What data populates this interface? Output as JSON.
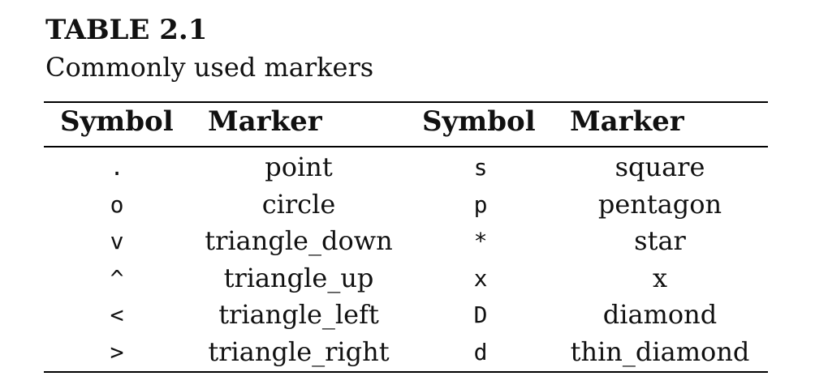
{
  "table": {
    "label": "TABLE 2.1",
    "caption": "Commonly used markers",
    "headers": [
      "Symbol",
      "Marker",
      "Symbol",
      "Marker"
    ],
    "rows": [
      [
        ".",
        "point",
        "s",
        "square"
      ],
      [
        "o",
        "circle",
        "p",
        "pentagon"
      ],
      [
        "v",
        "triangle_down",
        "*",
        "star"
      ],
      [
        "^",
        "triangle_up",
        "x",
        "x"
      ],
      [
        "<",
        "triangle_left",
        "D",
        "diamond"
      ],
      [
        ">",
        "triangle_right",
        "d",
        "thin_diamond"
      ]
    ]
  }
}
